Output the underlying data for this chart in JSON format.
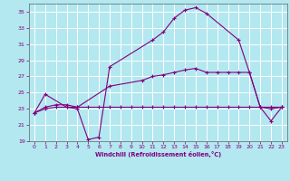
{
  "xlabel": "Windchill (Refroidissement éolien,°C)",
  "background_color": "#b3e8f0",
  "grid_color": "#ffffff",
  "line_color": "#800080",
  "xlim": [
    -0.5,
    23.5
  ],
  "ylim": [
    19,
    36
  ],
  "xticks": [
    0,
    1,
    2,
    3,
    4,
    5,
    6,
    7,
    8,
    9,
    10,
    11,
    12,
    13,
    14,
    15,
    16,
    17,
    18,
    19,
    20,
    21,
    22,
    23
  ],
  "yticks": [
    19,
    21,
    23,
    25,
    27,
    29,
    31,
    33,
    35
  ],
  "line1_x": [
    0,
    1,
    3,
    4,
    5,
    6,
    7,
    11,
    12,
    13,
    14,
    15,
    16,
    19,
    20,
    21,
    22,
    23
  ],
  "line1_y": [
    22.5,
    24.8,
    23.2,
    23.0,
    19.2,
    19.5,
    28.2,
    31.5,
    32.5,
    34.2,
    35.2,
    35.5,
    34.8,
    31.5,
    27.5,
    23.2,
    21.5,
    23.2
  ],
  "line2_x": [
    0,
    1,
    2,
    3,
    4,
    7,
    10,
    11,
    12,
    13,
    14,
    15,
    16,
    17,
    18,
    19,
    20,
    21,
    22,
    23
  ],
  "line2_y": [
    22.5,
    23.2,
    23.5,
    23.5,
    23.2,
    25.8,
    26.5,
    27.0,
    27.2,
    27.5,
    27.8,
    28.0,
    27.5,
    27.5,
    27.5,
    27.5,
    27.5,
    23.2,
    23.0,
    23.2
  ],
  "line3_x": [
    0,
    1,
    2,
    3,
    4,
    5,
    6,
    7,
    8,
    9,
    10,
    11,
    12,
    13,
    14,
    15,
    16,
    17,
    18,
    19,
    20,
    21,
    22,
    23
  ],
  "line3_y": [
    22.5,
    23.0,
    23.2,
    23.2,
    23.2,
    23.2,
    23.2,
    23.2,
    23.2,
    23.2,
    23.2,
    23.2,
    23.2,
    23.2,
    23.2,
    23.2,
    23.2,
    23.2,
    23.2,
    23.2,
    23.2,
    23.2,
    23.2,
    23.2
  ]
}
